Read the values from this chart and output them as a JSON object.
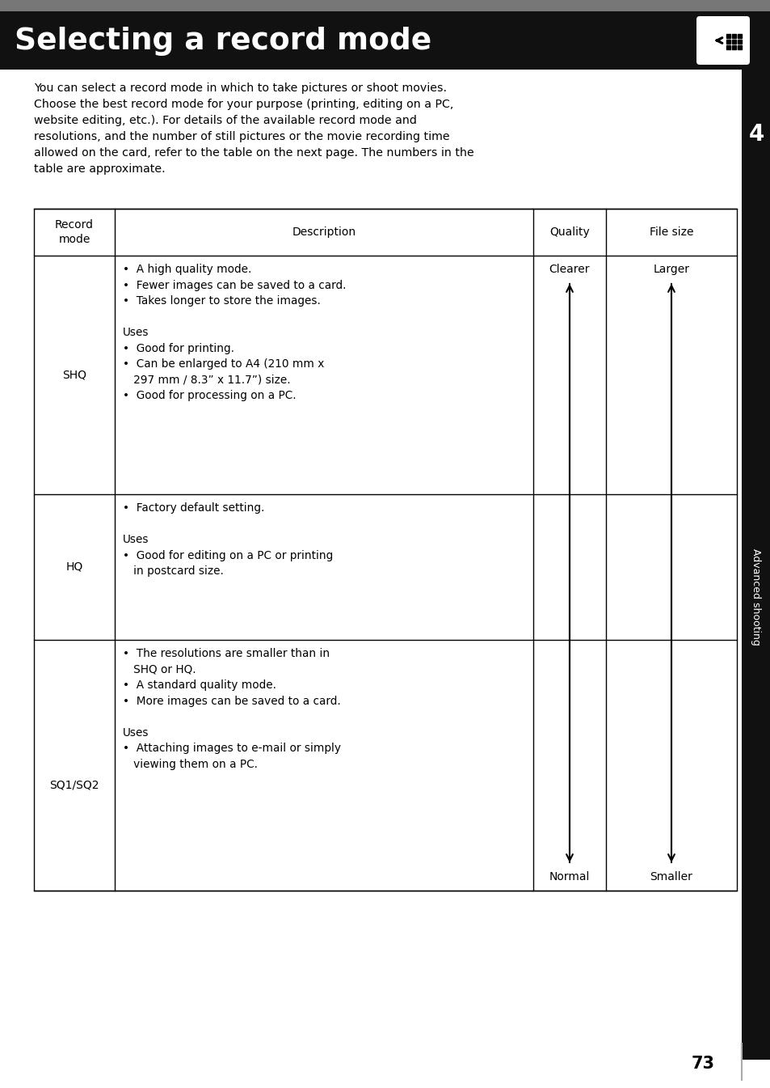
{
  "title": "Selecting a record mode",
  "bg_color": "#ffffff",
  "header_bg": "#111111",
  "gray_bar_color": "#888888",
  "header_text_color": "#ffffff",
  "sidebar_bg": "#111111",
  "sidebar_text": "Advanced shooting",
  "sidebar_number": "4",
  "page_number": "73",
  "intro_text": "You can select a record mode in which to take pictures or shoot movies.\nChoose the best record mode for your purpose (printing, editing on a PC,\nwebsite editing, etc.). For details of the available record mode and\nresolutions, and the number of still pictures or the movie recording time\nallowed on the card, refer to the table on the next page. The numbers in the\ntable are approximate.",
  "shq_desc": "•  A high quality mode.\n•  Fewer images can be saved to a card.\n•  Takes longer to store the images.\n\nUses\n•  Good for printing.\n•  Can be enlarged to A4 (210 mm x\n   297 mm / 8.3” x 11.7”) size.\n•  Good for processing on a PC.",
  "hq_desc": "•  Factory default setting.\n\nUses\n•  Good for editing on a PC or printing\n   in postcard size.",
  "sq_desc": "•  The resolutions are smaller than in\n   SHQ or HQ.\n•  A standard quality mode.\n•  More images can be saved to a card.\n\nUses\n•  Attaching images to e-mail or simply\n   viewing them on a PC.",
  "quality_top": "Clearer",
  "quality_bottom": "Normal",
  "filesize_top": "Larger",
  "filesize_bottom": "Smaller",
  "col_headers": [
    "Record\nmode",
    "Description",
    "Quality",
    "File size"
  ],
  "row_modes": [
    "SHQ",
    "HQ",
    "SQ1/SQ2"
  ]
}
